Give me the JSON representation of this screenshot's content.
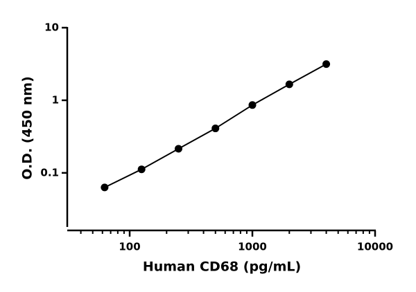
{
  "chart_data": {
    "type": "line",
    "xlabel": "Human CD68 (pg/mL)",
    "ylabel": "O.D. (450 nm)",
    "xscale": "log",
    "yscale": "log",
    "x": [
      62.5,
      125,
      250,
      500,
      1000,
      2000,
      4000
    ],
    "series": [
      {
        "color": "#000000",
        "values": [
          0.063,
          0.112,
          0.215,
          0.41,
          0.86,
          1.66,
          3.15
        ]
      }
    ],
    "xlim": [
      31,
      10000
    ],
    "ylim": [
      0.018,
      10
    ],
    "xticks": [
      100,
      1000,
      10000
    ],
    "xminorticks": [
      40,
      50,
      60,
      70,
      80,
      90,
      200,
      300,
      400,
      500,
      600,
      700,
      800,
      900,
      2000,
      3000,
      4000,
      5000,
      6000,
      7000,
      8000,
      9000
    ],
    "yticks": [
      0.1,
      1,
      10
    ]
  }
}
